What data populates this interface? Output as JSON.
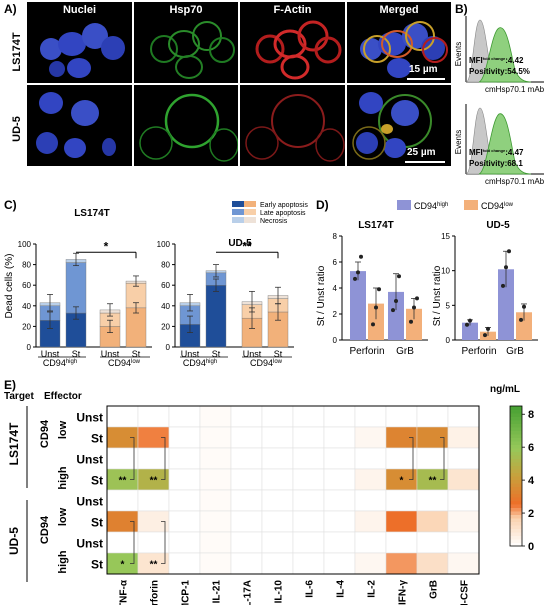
{
  "panel_a": {
    "label": "A)",
    "columns": [
      "Nuclei",
      "Hsp70",
      "F-Actin",
      "Merged"
    ],
    "rows": [
      "LS174T",
      "UD-5"
    ],
    "scalebars": [
      "15 µm",
      "25 µm"
    ]
  },
  "panel_b": {
    "label": "B)",
    "ylabel": "Events",
    "xlabel": "cmHsp70.1 mAb",
    "histograms": [
      {
        "mfi_label": "MFI",
        "mfi_sup": "fold change",
        "mfi_value": ":4.42",
        "positivity": "Positivity:54.5%"
      },
      {
        "mfi_label": "MFI",
        "mfi_sup": "fold change",
        "mfi_value": ":4.47",
        "positivity": "Positivity:68.1"
      }
    ]
  },
  "panel_c": {
    "label": "C)",
    "legend": [
      "Early apoptosis",
      "Late apoptosis",
      "Necrosis"
    ],
    "ylabel": "Dead cells (%)",
    "group_labels": [
      "CD94",
      "CD94"
    ],
    "group_sups": [
      "high",
      "low"
    ],
    "colors": {
      "high": [
        "#1f4e99",
        "#6f96d3",
        "#b9cfe9"
      ],
      "low": [
        "#f2b17a",
        "#f8cfa8",
        "#eee2d8"
      ]
    }
  },
  "panel_d": {
    "label": "D)",
    "legend": [
      {
        "name": "CD94",
        "sup": "high",
        "color": "#8e93d6"
      },
      {
        "name": "CD94",
        "sup": "low",
        "color": "#f3b07a"
      }
    ],
    "ylabel": "St / Unst ratio"
  },
  "panel_e": {
    "label": "E)",
    "corner_target": "Target",
    "corner_effector": "Effector",
    "unit": "ng/mL",
    "targets": [
      "LS174T",
      "UD-5"
    ],
    "cd94_label": "CD94",
    "level_labels": [
      "low",
      "high",
      "low",
      "high"
    ],
    "row_labels": [
      "Unst",
      "St",
      "Unst",
      "St",
      "Unst",
      "St",
      "Unst",
      "St"
    ]
  },
  "chart_data": [
    {
      "type": "bar",
      "title": "LS174T",
      "ylabel": "Dead cells (%)",
      "categories": [
        "Unst",
        "St",
        "Unst",
        "St"
      ],
      "ylim": [
        0,
        100
      ],
      "yticks": [
        0,
        20,
        40,
        60,
        80,
        100
      ],
      "stacked": true,
      "series": [
        {
          "name": "Early apoptosis",
          "values": [
            26,
            33,
            20,
            38
          ]
        },
        {
          "name": "Late apoptosis",
          "values": [
            14,
            49,
            13,
            24
          ]
        },
        {
          "name": "Necrosis",
          "values": [
            3,
            3,
            3,
            2
          ]
        }
      ],
      "errors": [
        8,
        6,
        6,
        5
      ],
      "significance": [
        {
          "from": 1,
          "to": 3,
          "label": "*"
        }
      ]
    },
    {
      "type": "bar",
      "title": "UD-5",
      "ylabel": "Dead cells (%)",
      "categories": [
        "Unst",
        "St",
        "Unst",
        "St"
      ],
      "ylim": [
        0,
        100
      ],
      "yticks": [
        0,
        20,
        40,
        60,
        80,
        100
      ],
      "stacked": true,
      "series": [
        {
          "name": "Early apoptosis",
          "values": [
            22,
            60,
            28,
            34
          ]
        },
        {
          "name": "Late apoptosis",
          "values": [
            18,
            12,
            13,
            13
          ]
        },
        {
          "name": "Necrosis",
          "values": [
            3,
            2,
            3,
            3
          ]
        }
      ],
      "errors": [
        8,
        6,
        10,
        8
      ],
      "significance": [
        {
          "from": 1,
          "to": 3,
          "label": "**"
        }
      ]
    },
    {
      "type": "bar",
      "title": "LS174T",
      "ylabel": "St / Unst ratio",
      "categories": [
        "Perforin",
        "GrB"
      ],
      "ylim": [
        0,
        8
      ],
      "yticks": [
        0,
        2,
        4,
        6,
        8
      ],
      "series": [
        {
          "name": "CD94 high",
          "values": [
            5.3,
            3.7
          ]
        },
        {
          "name": "CD94 low",
          "values": [
            2.8,
            2.4
          ]
        }
      ],
      "errors": [
        [
          0.7,
          1.4
        ],
        [
          1.2,
          0.8
        ]
      ],
      "points": [
        [
          [
            4.7,
            5.2,
            6.4
          ],
          [
            2.3,
            3.0,
            4.9
          ]
        ],
        [
          [
            1.2,
            2.5,
            3.9
          ],
          [
            1.4,
            2.5,
            3.2
          ]
        ]
      ]
    },
    {
      "type": "bar",
      "title": "UD-5",
      "ylabel": "St / Unst ratio",
      "categories": [
        "Perforin",
        "GrB"
      ],
      "ylim": [
        0,
        15
      ],
      "yticks": [
        0,
        5,
        10,
        15
      ],
      "series": [
        {
          "name": "CD94 high",
          "values": [
            2.5,
            10.2
          ]
        },
        {
          "name": "CD94 low",
          "values": [
            1.2,
            4.0
          ]
        }
      ],
      "errors": [
        [
          0.4,
          2.6
        ],
        [
          0.6,
          1.2
        ]
      ],
      "points": [
        [
          [
            2.2,
            2.8
          ],
          [
            7.8,
            10.5,
            12.8
          ]
        ],
        [
          [
            0.7,
            1.6
          ],
          [
            2.9,
            4.8
          ]
        ]
      ]
    },
    {
      "type": "heatmap",
      "unit": "ng/mL",
      "columns": [
        "TNF-α",
        "Perforin",
        "MCP-1",
        "IL-21",
        "IL-17A",
        "IL-10",
        "IL-6",
        "IL-4",
        "IL-2",
        "IFN-γ",
        "GrB",
        "GM-CSF"
      ],
      "rows": [
        "LS174T CD94low Unst",
        "LS174T CD94low St",
        "LS174T CD94high Unst",
        "LS174T CD94high St",
        "UD-5 CD94low Unst",
        "UD-5 CD94low St",
        "UD-5 CD94high Unst",
        "UD-5 CD94high St"
      ],
      "scale": [
        0,
        8.5
      ],
      "ticks": [
        0,
        2,
        4,
        6,
        8
      ],
      "values": [
        [
          0,
          0,
          0,
          0.15,
          0,
          0,
          0,
          0,
          0,
          0,
          0,
          0
        ],
        [
          3.6,
          2.4,
          0,
          0.15,
          0,
          0,
          0,
          0,
          0.3,
          3.3,
          3.5,
          0.5
        ],
        [
          0,
          0,
          0,
          0.15,
          0,
          0,
          0,
          0,
          0,
          0,
          0,
          0
        ],
        [
          5.7,
          5.0,
          0,
          0.15,
          0,
          0,
          0,
          0,
          0.4,
          3.6,
          5.4,
          1.0
        ],
        [
          0,
          0,
          0,
          0.15,
          0,
          0,
          0,
          0,
          0,
          0,
          0,
          0
        ],
        [
          3.2,
          0.6,
          0,
          0.15,
          0,
          0,
          0,
          0,
          0.4,
          2.6,
          1.5,
          0.3
        ],
        [
          0,
          0,
          0,
          0.15,
          0,
          0,
          0,
          0,
          0,
          0,
          0,
          0
        ],
        [
          5.9,
          1.0,
          0,
          0.15,
          0,
          0,
          0,
          0,
          0.3,
          2.2,
          1.2,
          0.3
        ]
      ],
      "annotations": [
        {
          "row": 3,
          "col": 0,
          "label": "**"
        },
        {
          "row": 3,
          "col": 1,
          "label": "**"
        },
        {
          "row": 3,
          "col": 9,
          "label": "*"
        },
        {
          "row": 3,
          "col": 10,
          "label": "**"
        },
        {
          "row": 7,
          "col": 0,
          "label": "*"
        },
        {
          "row": 7,
          "col": 1,
          "label": "**"
        }
      ]
    }
  ]
}
